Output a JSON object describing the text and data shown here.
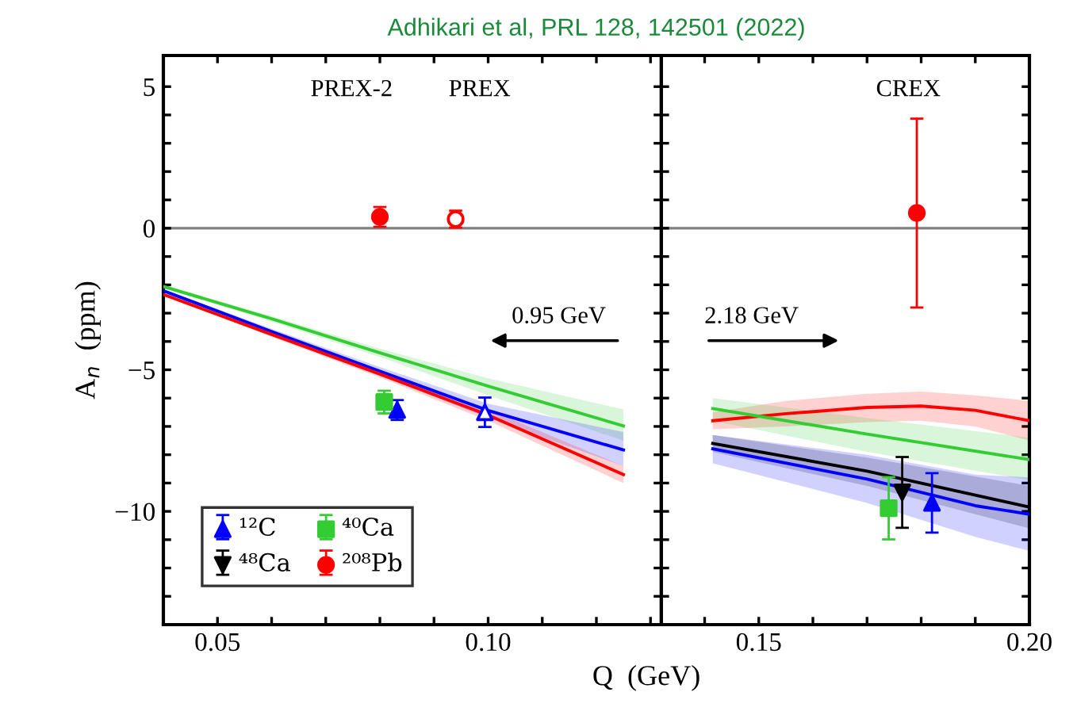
{
  "chart_data": [
    {
      "type": "scatter",
      "title": "Adhikari et al, PRL 128, 142501 (2022)",
      "xlabel": "Q  (GeV)",
      "ylabel": "A$_{n}$  (ppm)",
      "xlim": [
        0.04,
        0.132
      ],
      "ylim": [
        -14,
        6.1
      ],
      "xticks": [
        0.05,
        {
          "value": 0.06,
          "label": null
        },
        {
          "value": 0.07,
          "label": null
        },
        {
          "value": 0.08,
          "label": null
        },
        {
          "value": 0.09,
          "label": null
        },
        {
          "value": 0.1,
          "label": "0.10"
        },
        {
          "value": 0.11,
          "label": null
        },
        {
          "value": 0.12,
          "label": null
        },
        {
          "value": 0.13,
          "label": null
        }
      ],
      "yticks": [
        {
          "value": -13,
          "label": null
        },
        {
          "value": -12,
          "label": null
        },
        {
          "value": -11,
          "label": null
        },
        {
          "value": -10,
          "label": "−10"
        },
        {
          "value": -9,
          "label": null
        },
        {
          "value": -8,
          "label": null
        },
        {
          "value": -7,
          "label": null
        },
        {
          "value": -6,
          "label": null
        },
        {
          "value": -5,
          "label": "−5"
        },
        {
          "value": -4,
          "label": null
        },
        {
          "value": -3,
          "label": null
        },
        {
          "value": -2,
          "label": null
        },
        {
          "value": -1,
          "label": null
        },
        0,
        {
          "value": 1,
          "label": null
        },
        {
          "value": 2,
          "label": null
        },
        {
          "value": 3,
          "label": null
        },
        {
          "value": 4,
          "label": null
        },
        5
      ],
      "ref_lines": [
        {
          "axis": "y",
          "value": 0,
          "color": "#808080"
        }
      ],
      "annotations": [
        "PREX-2",
        "PREX",
        "0.95 GeV"
      ],
      "series": [
        {
          "type": "line",
          "color": "#33cc33",
          "x": [
            0.04,
            0.06,
            0.08,
            0.1,
            0.125
          ],
          "values": [
            -2.06,
            -3.2,
            -4.4,
            -5.58,
            -6.98
          ],
          "lower": [
            -2.1,
            -3.3,
            -4.55,
            -5.9,
            -7.5
          ],
          "upper": [
            -2.0,
            -3.1,
            -4.25,
            -5.3,
            -6.4
          ]
        },
        {
          "type": "line",
          "color": "#0000ff",
          "x": [
            0.04,
            0.06,
            0.08,
            0.1,
            0.125
          ],
          "values": [
            -2.21,
            -3.65,
            -5.05,
            -6.44,
            -7.83
          ],
          "lower": [
            -2.26,
            -3.75,
            -5.2,
            -6.7,
            -8.4
          ],
          "upper": [
            -2.16,
            -3.55,
            -4.9,
            -6.2,
            -7.2
          ]
        },
        {
          "type": "line",
          "color": "#ff0000",
          "x": [
            0.04,
            0.06,
            0.08,
            0.1,
            0.125
          ],
          "values": [
            -2.34,
            -3.75,
            -5.15,
            -6.6,
            -8.7
          ],
          "lower": [
            -2.39,
            -3.83,
            -5.27,
            -6.8,
            -9.0
          ],
          "upper": [
            -2.29,
            -3.67,
            -5.03,
            -6.4,
            -8.4
          ]
        },
        {
          "color": "#0000ff",
          "marker": "triangle",
          "x": [
            0.0832
          ],
          "values": [
            -6.42
          ],
          "errors": [
            0.35
          ]
        },
        {
          "color": "#33cc33",
          "marker": "square",
          "x": [
            0.0808
          ],
          "values": [
            -6.14
          ],
          "errors": [
            0.4
          ]
        },
        {
          "color": "#ff0000",
          "marker": "circle",
          "x": [
            0.08
          ],
          "values": [
            0.4
          ],
          "errors": [
            0.35
          ]
        },
        {
          "color": "#ff0000",
          "marker": "circle",
          "x": [
            0.094
          ],
          "values": [
            0.32
          ],
          "errors": [
            0.3
          ]
        },
        {
          "color": "#0000ff",
          "marker": "triangle",
          "x": [
            0.0994
          ],
          "values": [
            -6.5
          ],
          "errors": [
            0.52
          ]
        }
      ]
    },
    {
      "type": "scatter",
      "tick_labels": "x",
      "xlim": [
        0.132,
        0.2
      ],
      "ylim": [
        -14,
        6.1
      ],
      "xticks": [
        {
          "value": 0.14,
          "label": null
        },
        0.15,
        {
          "value": 0.16,
          "label": null
        },
        {
          "value": 0.17,
          "label": null
        },
        {
          "value": 0.18,
          "label": null
        },
        {
          "value": 0.19,
          "label": null
        },
        {
          "value": 0.2,
          "label": "0.20"
        }
      ],
      "yticks": [
        {
          "value": -13,
          "label": null
        },
        {
          "value": -12,
          "label": null
        },
        {
          "value": -11,
          "label": null
        },
        {
          "value": -10,
          "label": null
        },
        {
          "value": -9,
          "label": null
        },
        {
          "value": -8,
          "label": null
        },
        {
          "value": -7,
          "label": null
        },
        {
          "value": -6,
          "label": null
        },
        {
          "value": -5,
          "label": null
        },
        {
          "value": -4,
          "label": null
        },
        {
          "value": -3,
          "label": null
        },
        {
          "value": -2,
          "label": null
        },
        {
          "value": -1,
          "label": null
        },
        {
          "value": 0,
          "label": null
        },
        {
          "value": 1,
          "label": null
        },
        {
          "value": 2,
          "label": null
        },
        {
          "value": 3,
          "label": null
        },
        {
          "value": 4,
          "label": null
        },
        {
          "value": 5,
          "label": null
        }
      ],
      "ref_lines": [
        {
          "axis": "y",
          "value": 0,
          "color": "#808080"
        }
      ],
      "legend": "bottom left",
      "annotations": [
        "CREX",
        "2.18 GeV"
      ],
      "series": [
        {
          "type": "line",
          "color": "#ff0000",
          "x": [
            0.1415,
            0.155,
            0.17,
            0.18,
            0.19,
            0.2
          ],
          "values": [
            -6.8,
            -6.55,
            -6.33,
            -6.28,
            -6.43,
            -6.8
          ],
          "lower": [
            -7.1,
            -7.0,
            -6.85,
            -6.8,
            -7.0,
            -7.5
          ],
          "upper": [
            -6.5,
            -6.1,
            -5.85,
            -5.77,
            -5.9,
            -6.1
          ]
        },
        {
          "type": "line",
          "color": "#33cc33",
          "x": [
            0.1415,
            0.17,
            0.2
          ],
          "values": [
            -6.37,
            -7.27,
            -8.17
          ],
          "lower": [
            -6.8,
            -7.9,
            -8.9
          ],
          "upper": [
            -6.0,
            -6.7,
            -7.4
          ]
        },
        {
          "type": "line",
          "color": "#000000",
          "x": [
            0.1415,
            0.17,
            0.2
          ],
          "values": [
            -7.6,
            -8.58,
            -9.85
          ],
          "lower": [
            -7.9,
            -9.1,
            -10.6
          ],
          "upper": [
            -7.3,
            -8.1,
            -9.1
          ]
        },
        {
          "type": "line",
          "color": "#0000ff",
          "x": [
            0.1415,
            0.17,
            0.19,
            0.2
          ],
          "values": [
            -7.79,
            -8.86,
            -9.8,
            -10.1
          ],
          "lower": [
            -8.3,
            -9.7,
            -10.9,
            -11.4
          ],
          "upper": [
            -7.3,
            -8.0,
            -8.7,
            -8.8
          ]
        },
        {
          "name": "¹²C",
          "color": "#0000ff",
          "marker": "triangle",
          "x": [
            0.182
          ],
          "values": [
            -9.7
          ],
          "errors": [
            1.05
          ]
        },
        {
          "name": "⁴⁰Ca",
          "color": "#33cc33",
          "marker": "square",
          "x": [
            0.174
          ],
          "values": [
            -9.89
          ],
          "errors": [
            1.1
          ]
        },
        {
          "name": "⁴⁸Ca",
          "color": "#000000",
          "marker": "triangle_down",
          "x": [
            0.1765
          ],
          "values": [
            -9.33
          ],
          "errors": [
            1.25
          ]
        },
        {
          "name": "²⁰⁸Pb",
          "color": "#ff0000",
          "marker": "circle",
          "x": [
            0.1792
          ],
          "values": [
            0.54
          ],
          "errors": [
            [
              -2.8,
              3.87
            ]
          ]
        }
      ]
    }
  ]
}
